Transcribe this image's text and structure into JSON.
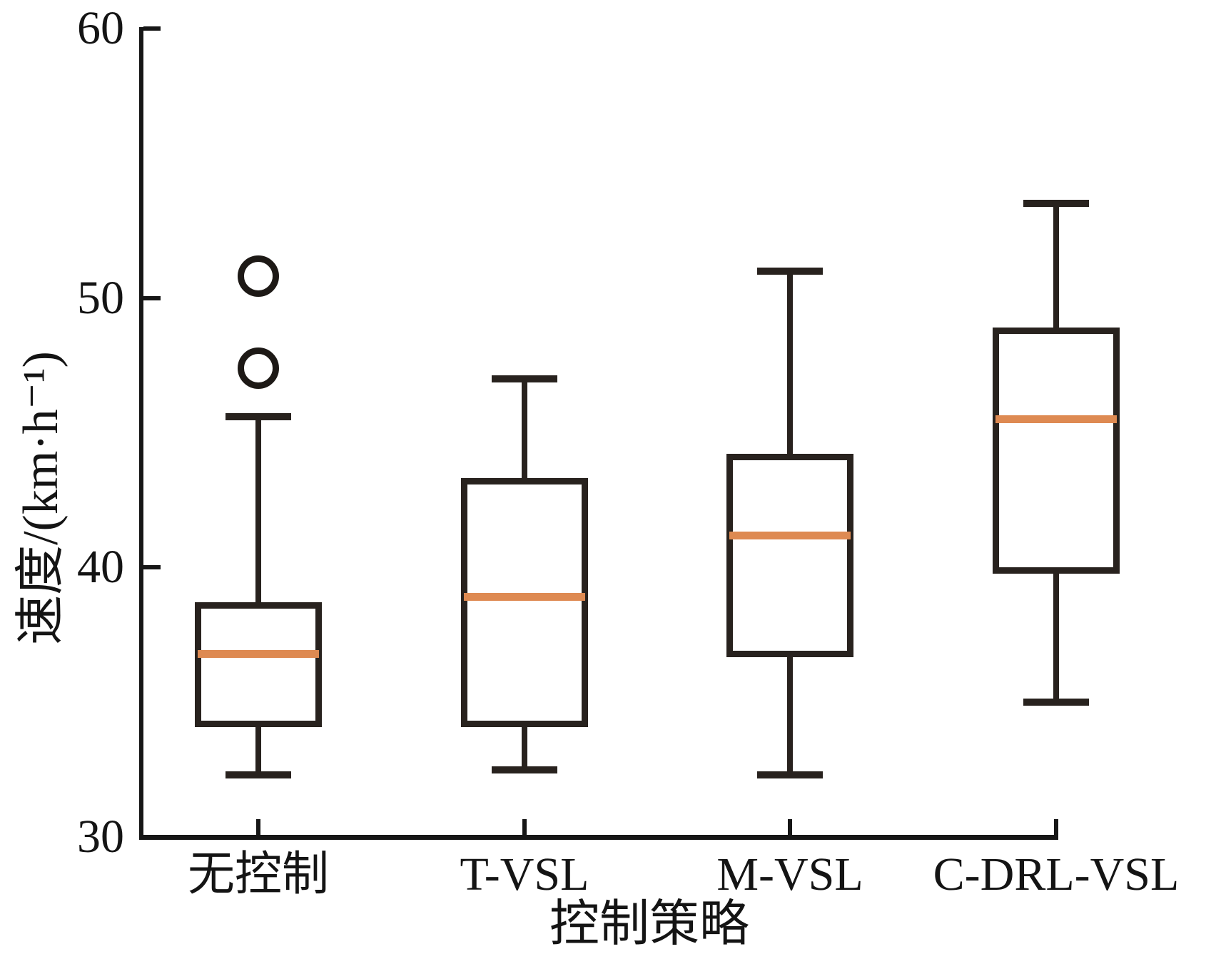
{
  "chart_data": {
    "type": "boxplot",
    "title": "",
    "xlabel": "控制策略",
    "ylabel": "速度/(km·h⁻¹)",
    "ylim": [
      30,
      60
    ],
    "yticks": [
      30,
      40,
      50,
      60
    ],
    "grid": false,
    "legend": null,
    "categories": [
      "无控制",
      "T-VSL",
      "M-VSL",
      "C-DRL-VSL"
    ],
    "series": [
      {
        "category": "无控制",
        "whisker_low": 32.3,
        "q1": 34.2,
        "median": 36.8,
        "q3": 38.6,
        "whisker_high": 45.6,
        "outliers": [
          47.4,
          50.8
        ]
      },
      {
        "category": "T-VSL",
        "whisker_low": 32.5,
        "q1": 34.2,
        "median": 38.9,
        "q3": 43.2,
        "whisker_high": 47.0,
        "outliers": []
      },
      {
        "category": "M-VSL",
        "whisker_low": 32.3,
        "q1": 36.8,
        "median": 41.2,
        "q3": 44.1,
        "whisker_high": 51.0,
        "outliers": []
      },
      {
        "category": "C-DRL-VSL",
        "whisker_low": 35.0,
        "q1": 39.9,
        "median": 45.5,
        "q3": 48.8,
        "whisker_high": 53.5,
        "outliers": []
      }
    ],
    "colors": {
      "box_edge": "#28221e",
      "median": "#de8a52",
      "axis": "#161616",
      "text": "#141414",
      "background": "#ffffff"
    }
  }
}
